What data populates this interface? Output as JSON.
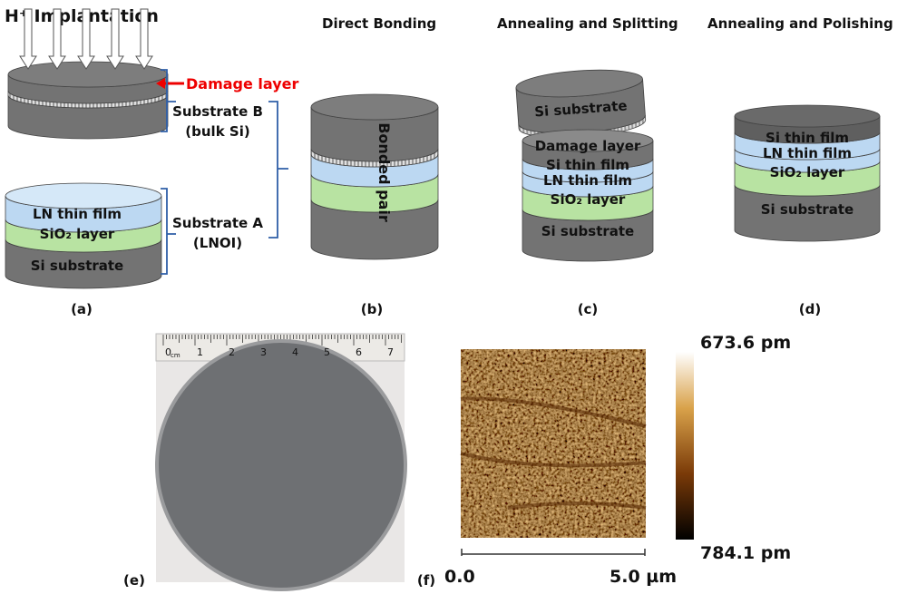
{
  "panel_a": {
    "title": "H⁺ Implantation",
    "damage_label": "Damage layer",
    "substrate_b": "Substrate B",
    "substrate_b_note": "(bulk Si)",
    "layers": [
      "LN thin film",
      "SiO₂ layer",
      "Si substrate"
    ],
    "substrate_a": "Substrate A",
    "substrate_a_note": "(LNOI)",
    "tag": "(a)"
  },
  "panel_b": {
    "title": "Direct Bonding",
    "label": "Bonded pair",
    "tag": "(b)"
  },
  "panel_c": {
    "title": "Annealing and Splitting",
    "top_piece": "Si substrate",
    "layers": [
      "Damage layer",
      "Si thin film",
      "LN thin film",
      "SiO₂ layer",
      "Si substrate"
    ],
    "tag": "(c)"
  },
  "panel_d": {
    "title": "Annealing and Polishing",
    "layers": [
      "Si thin film",
      "LN thin film",
      "SiO₂ layer",
      "Si substrate"
    ],
    "tag": "(d)"
  },
  "panel_e": {
    "ruler_labels": [
      "0",
      "1",
      "2",
      "3",
      "4",
      "5",
      "6",
      "7"
    ],
    "ruler_unit": "cm",
    "tag": "(e)"
  },
  "panel_f": {
    "colorbar_top": "673.6 pm",
    "colorbar_bottom": "784.1 pm",
    "scale_start": "0.0",
    "scale_end": "5.0 µm",
    "tag": "(f)"
  }
}
